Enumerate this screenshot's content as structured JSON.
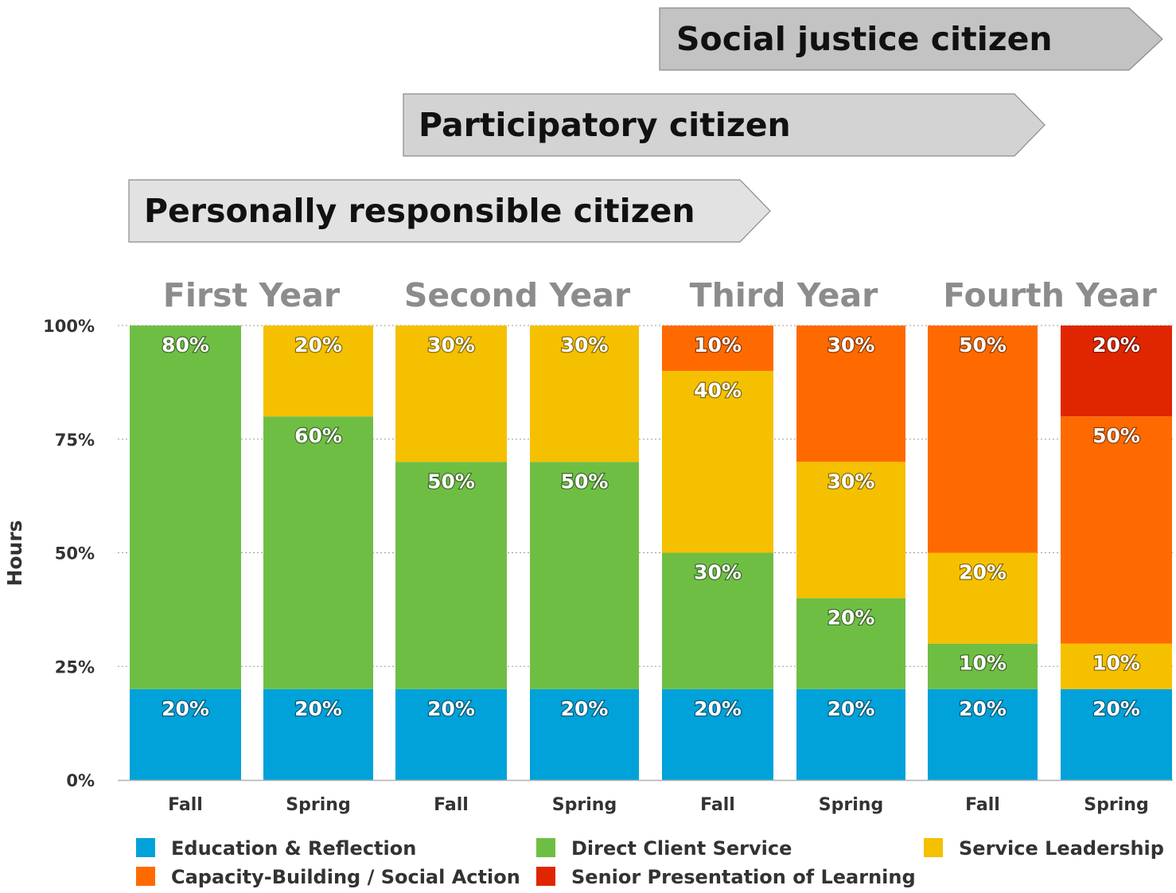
{
  "chart_data": {
    "type": "bar",
    "stacked": true,
    "ylabel": "Hours",
    "xlabel": "",
    "ylim": [
      0,
      100
    ],
    "yticks": [
      "0%",
      "25%",
      "50%",
      "75%",
      "100%"
    ],
    "categories": [
      "Fall",
      "Spring",
      "Fall",
      "Spring",
      "Fall",
      "Spring",
      "Fall",
      "Spring"
    ],
    "groups": [
      "First Year",
      "Second Year",
      "Third Year",
      "Fourth Year"
    ],
    "series": [
      {
        "name": "Education & Reflection",
        "color": "#00a2d9",
        "values": [
          20,
          20,
          20,
          20,
          20,
          20,
          20,
          20
        ]
      },
      {
        "name": "Direct Client Service",
        "color": "#6fbe44",
        "values": [
          80,
          60,
          50,
          50,
          30,
          20,
          10,
          0
        ]
      },
      {
        "name": "Service Leadership",
        "color": "#f5c000",
        "values": [
          0,
          20,
          30,
          30,
          40,
          30,
          20,
          10
        ]
      },
      {
        "name": "Capacity-Building / Social Action",
        "color": "#ff6a00",
        "values": [
          0,
          0,
          0,
          0,
          10,
          30,
          50,
          50
        ]
      },
      {
        "name": "Senior Presentation of Learning",
        "color": "#e02600",
        "values": [
          0,
          0,
          0,
          0,
          0,
          0,
          0,
          20
        ]
      }
    ],
    "value_suffix": "%",
    "legend": "bottom",
    "grid": true
  },
  "arrows": [
    {
      "label": "Social justice citizen"
    },
    {
      "label": "Participatory citizen"
    },
    {
      "label": "Personally responsible citizen"
    }
  ]
}
